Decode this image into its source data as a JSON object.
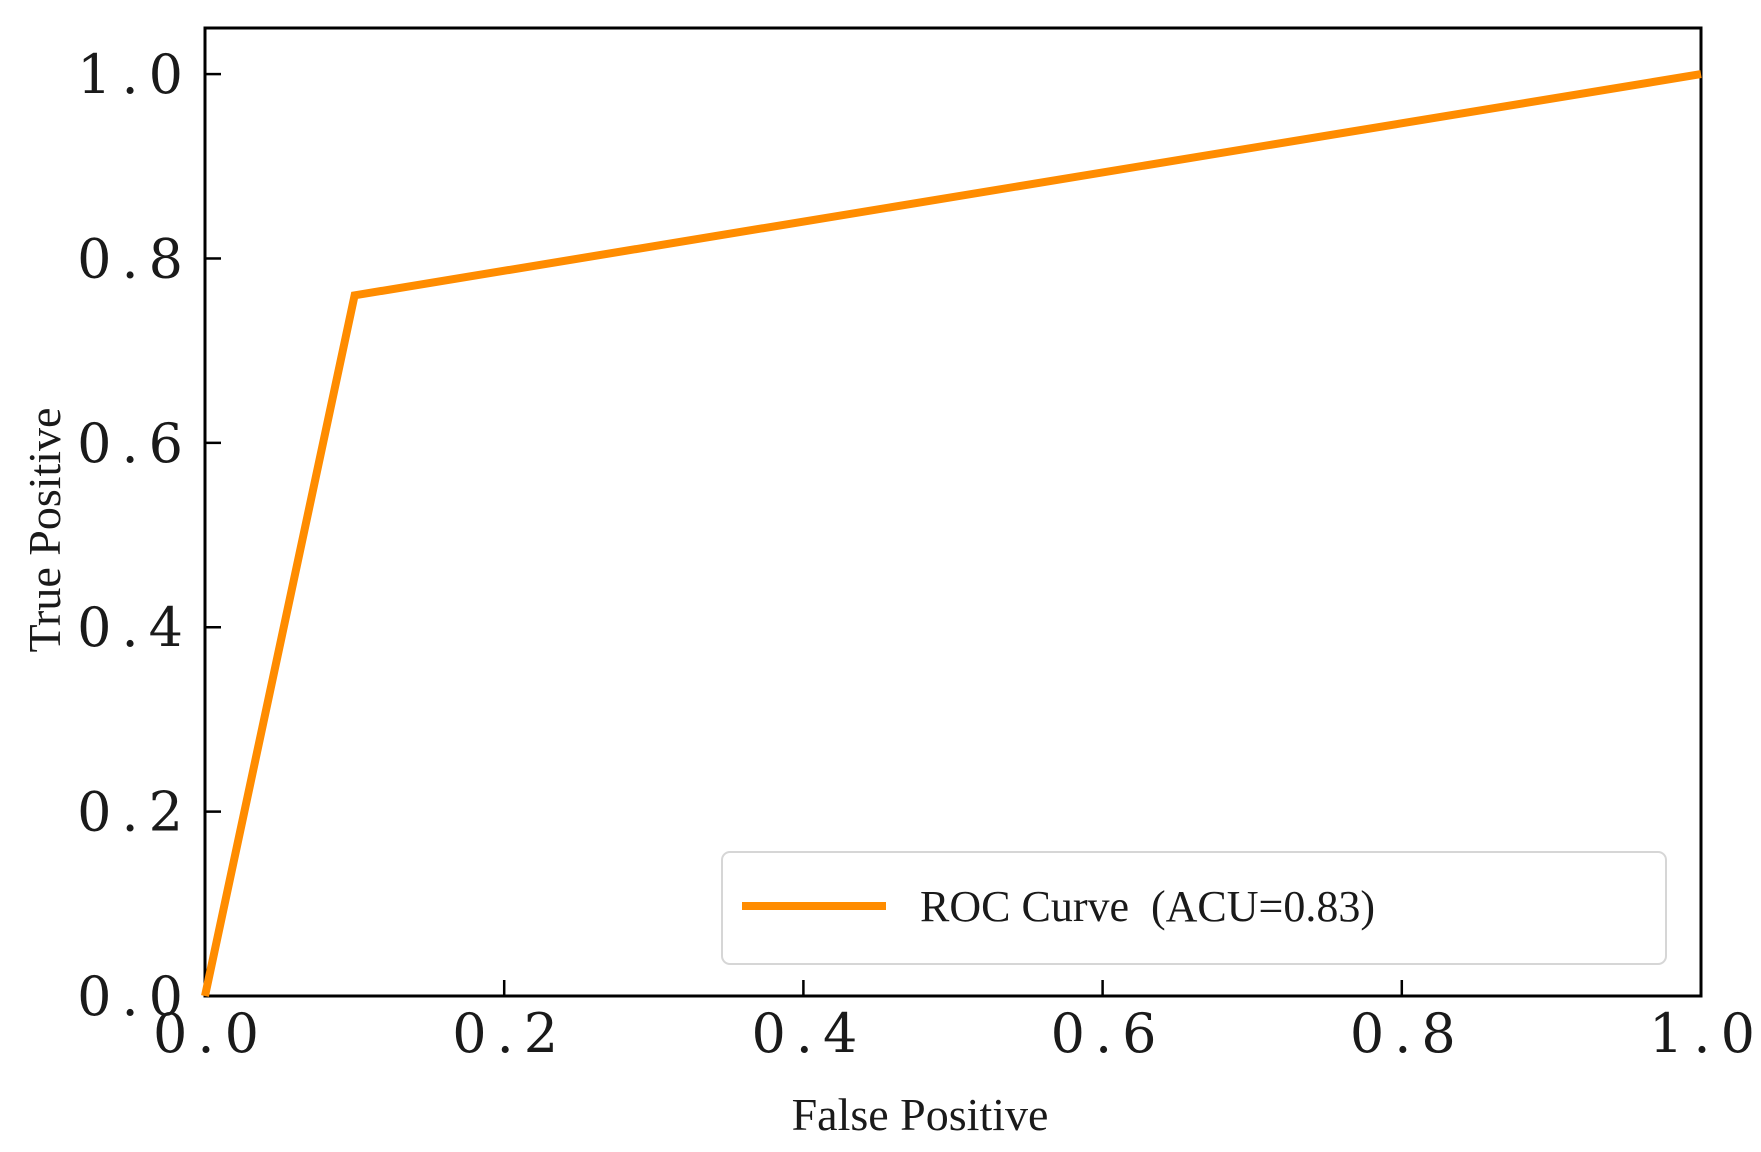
{
  "chart_data": {
    "type": "line",
    "title": "",
    "xlabel": "False Positive",
    "ylabel": "True Positive",
    "xlim": [
      0,
      1
    ],
    "ylim": [
      0,
      1.05
    ],
    "xticks": [
      0,
      0.2,
      0.4,
      0.6,
      0.8,
      1.0
    ],
    "yticks": [
      0,
      0.2,
      0.4,
      0.6,
      0.8,
      1.0
    ],
    "xtick_labels": [
      "0.0",
      "0.2",
      "0.4",
      "0.6",
      "0.8",
      "1.0"
    ],
    "ytick_labels": [
      "0.0",
      "0.2",
      "0.4",
      "0.6",
      "0.8",
      "1.0"
    ],
    "grid": false,
    "legend_position": "lower-right",
    "series": [
      {
        "name": "ROC Curve  (ACU=0.83)",
        "color": "#ff8c00",
        "x": [
          0,
          0.1,
          1.0
        ],
        "y": [
          0,
          0.76,
          1.0
        ]
      }
    ]
  }
}
